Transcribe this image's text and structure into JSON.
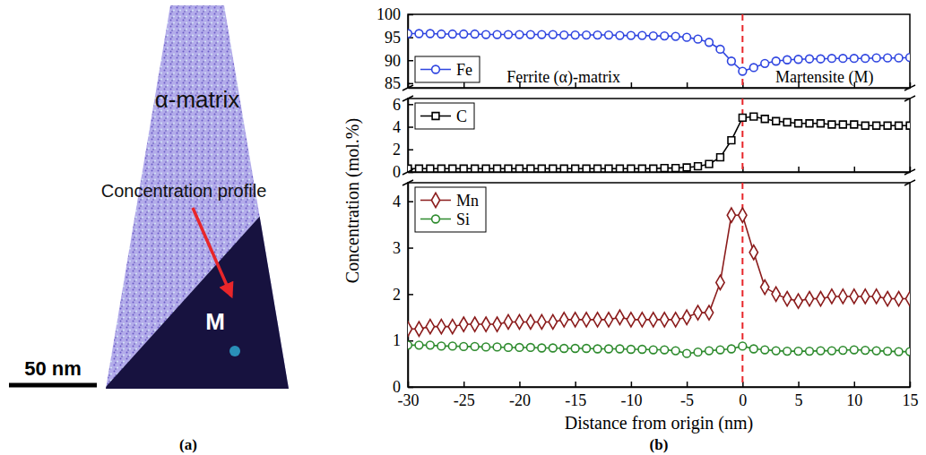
{
  "panel_a": {
    "label": "(a)",
    "matrix_label": "α-matrix",
    "arrow_label": "Concentration profile",
    "phase_label": "M",
    "scale_bar": "50 nm"
  },
  "panel_b": {
    "label": "(b)"
  },
  "chart_data": [
    {
      "type": "line",
      "x": [
        -30,
        -29,
        -28,
        -27,
        -26,
        -25,
        -24,
        -23,
        -22,
        -21,
        -20,
        -19,
        -18,
        -17,
        -16,
        -15,
        -14,
        -13,
        -12,
        -11,
        -10,
        -9,
        -8,
        -7,
        -6,
        -5,
        -4,
        -3,
        -2,
        -1,
        0,
        1,
        2,
        3,
        4,
        5,
        6,
        7,
        8,
        9,
        10,
        11,
        12,
        13,
        14,
        15
      ],
      "series": [
        {
          "name": "Fe",
          "color": "#2f45e0",
          "marker": "circle",
          "line_style": "solid",
          "values": [
            95.8,
            95.8,
            95.8,
            95.7,
            95.7,
            95.7,
            95.7,
            95.6,
            95.6,
            95.6,
            95.6,
            95.6,
            95.6,
            95.6,
            95.5,
            95.5,
            95.5,
            95.5,
            95.5,
            95.4,
            95.4,
            95.4,
            95.3,
            95.3,
            95.2,
            95.0,
            94.6,
            93.9,
            92.4,
            89.8,
            87.6,
            88.4,
            89.3,
            89.8,
            90.1,
            90.2,
            90.3,
            90.3,
            90.4,
            90.4,
            90.4,
            90.4,
            90.5,
            90.5,
            90.5,
            90.6
          ]
        }
      ],
      "xlim": [
        -30,
        15
      ],
      "xticks": [
        -30,
        -25,
        -20,
        -15,
        -10,
        -5,
        0,
        5,
        10,
        15
      ],
      "ylim": [
        84,
        100
      ],
      "yticks": [
        85,
        90,
        95,
        100
      ],
      "tick_labels": "y",
      "legend": "lower left",
      "annotations": [
        "Ferrite (α)-matrix",
        "Martensite (M)"
      ],
      "reference_line": {
        "x": 0,
        "color": "#e8262a",
        "line_style": "dashed"
      }
    },
    {
      "type": "line",
      "x": [
        -30,
        -29,
        -28,
        -27,
        -26,
        -25,
        -24,
        -23,
        -22,
        -21,
        -20,
        -19,
        -18,
        -17,
        -16,
        -15,
        -14,
        -13,
        -12,
        -11,
        -10,
        -9,
        -8,
        -7,
        -6,
        -5,
        -4,
        -3,
        -2,
        -1,
        0,
        1,
        2,
        3,
        4,
        5,
        6,
        7,
        8,
        9,
        10,
        11,
        12,
        13,
        14,
        15
      ],
      "series": [
        {
          "name": "C",
          "color": "#000000",
          "marker": "square",
          "line_style": "solid",
          "values": [
            0.3,
            0.3,
            0.3,
            0.3,
            0.3,
            0.3,
            0.3,
            0.3,
            0.3,
            0.3,
            0.3,
            0.3,
            0.3,
            0.3,
            0.3,
            0.3,
            0.3,
            0.3,
            0.3,
            0.3,
            0.3,
            0.3,
            0.3,
            0.35,
            0.35,
            0.4,
            0.5,
            0.7,
            1.3,
            2.8,
            4.8,
            4.9,
            4.7,
            4.5,
            4.4,
            4.3,
            4.3,
            4.3,
            4.2,
            4.2,
            4.2,
            4.1,
            4.1,
            4.1,
            4.1,
            4.1
          ]
        }
      ],
      "xlim": [
        -30,
        15
      ],
      "xticks": [
        -30,
        -25,
        -20,
        -15,
        -10,
        -5,
        0,
        5,
        10,
        15
      ],
      "ylim": [
        0,
        6.5
      ],
      "yticks": [
        0,
        2,
        4,
        6
      ],
      "ylabel": "Concentration (mol.%)",
      "tick_labels": "y",
      "legend": "upper left",
      "reference_line": {
        "x": 0,
        "color": "#e8262a",
        "line_style": "dashed"
      }
    },
    {
      "type": "line",
      "x": [
        -30,
        -29,
        -28,
        -27,
        -26,
        -25,
        -24,
        -23,
        -22,
        -21,
        -20,
        -19,
        -18,
        -17,
        -16,
        -15,
        -14,
        -13,
        -12,
        -11,
        -10,
        -9,
        -8,
        -7,
        -6,
        -5,
        -4,
        -3,
        -2,
        -1,
        0,
        1,
        2,
        3,
        4,
        5,
        6,
        7,
        8,
        9,
        10,
        11,
        12,
        13,
        14,
        15
      ],
      "series": [
        {
          "name": "Mn",
          "color": "#8b1c1c",
          "marker": "diamond",
          "line_style": "solid",
          "values": [
            1.25,
            1.25,
            1.3,
            1.3,
            1.3,
            1.35,
            1.35,
            1.35,
            1.35,
            1.4,
            1.4,
            1.4,
            1.4,
            1.4,
            1.45,
            1.45,
            1.45,
            1.45,
            1.45,
            1.5,
            1.45,
            1.45,
            1.45,
            1.45,
            1.45,
            1.5,
            1.6,
            1.6,
            2.25,
            3.7,
            3.7,
            2.9,
            2.15,
            2.0,
            1.9,
            1.85,
            1.9,
            1.9,
            1.95,
            1.95,
            1.95,
            1.95,
            1.95,
            1.9,
            1.9,
            1.9
          ]
        },
        {
          "name": "Si",
          "color": "#2e8b2e",
          "marker": "circle",
          "line_style": "solid",
          "values": [
            0.9,
            0.9,
            0.9,
            0.88,
            0.88,
            0.87,
            0.87,
            0.86,
            0.86,
            0.85,
            0.85,
            0.85,
            0.84,
            0.84,
            0.83,
            0.83,
            0.83,
            0.82,
            0.82,
            0.82,
            0.81,
            0.81,
            0.8,
            0.8,
            0.78,
            0.72,
            0.75,
            0.78,
            0.8,
            0.82,
            0.88,
            0.82,
            0.8,
            0.78,
            0.77,
            0.77,
            0.77,
            0.78,
            0.78,
            0.79,
            0.8,
            0.79,
            0.78,
            0.77,
            0.76,
            0.76
          ]
        }
      ],
      "xlim": [
        -30,
        15
      ],
      "xticks": [
        -30,
        -25,
        -20,
        -15,
        -10,
        -5,
        0,
        5,
        10,
        15
      ],
      "ylim": [
        0,
        4.4
      ],
      "yticks": [
        0,
        1,
        2,
        3,
        4
      ],
      "xlabel": "Distance from origin (nm)",
      "legend": "upper left",
      "reference_line": {
        "x": 0,
        "color": "#e8262a",
        "line_style": "dashed"
      }
    }
  ]
}
